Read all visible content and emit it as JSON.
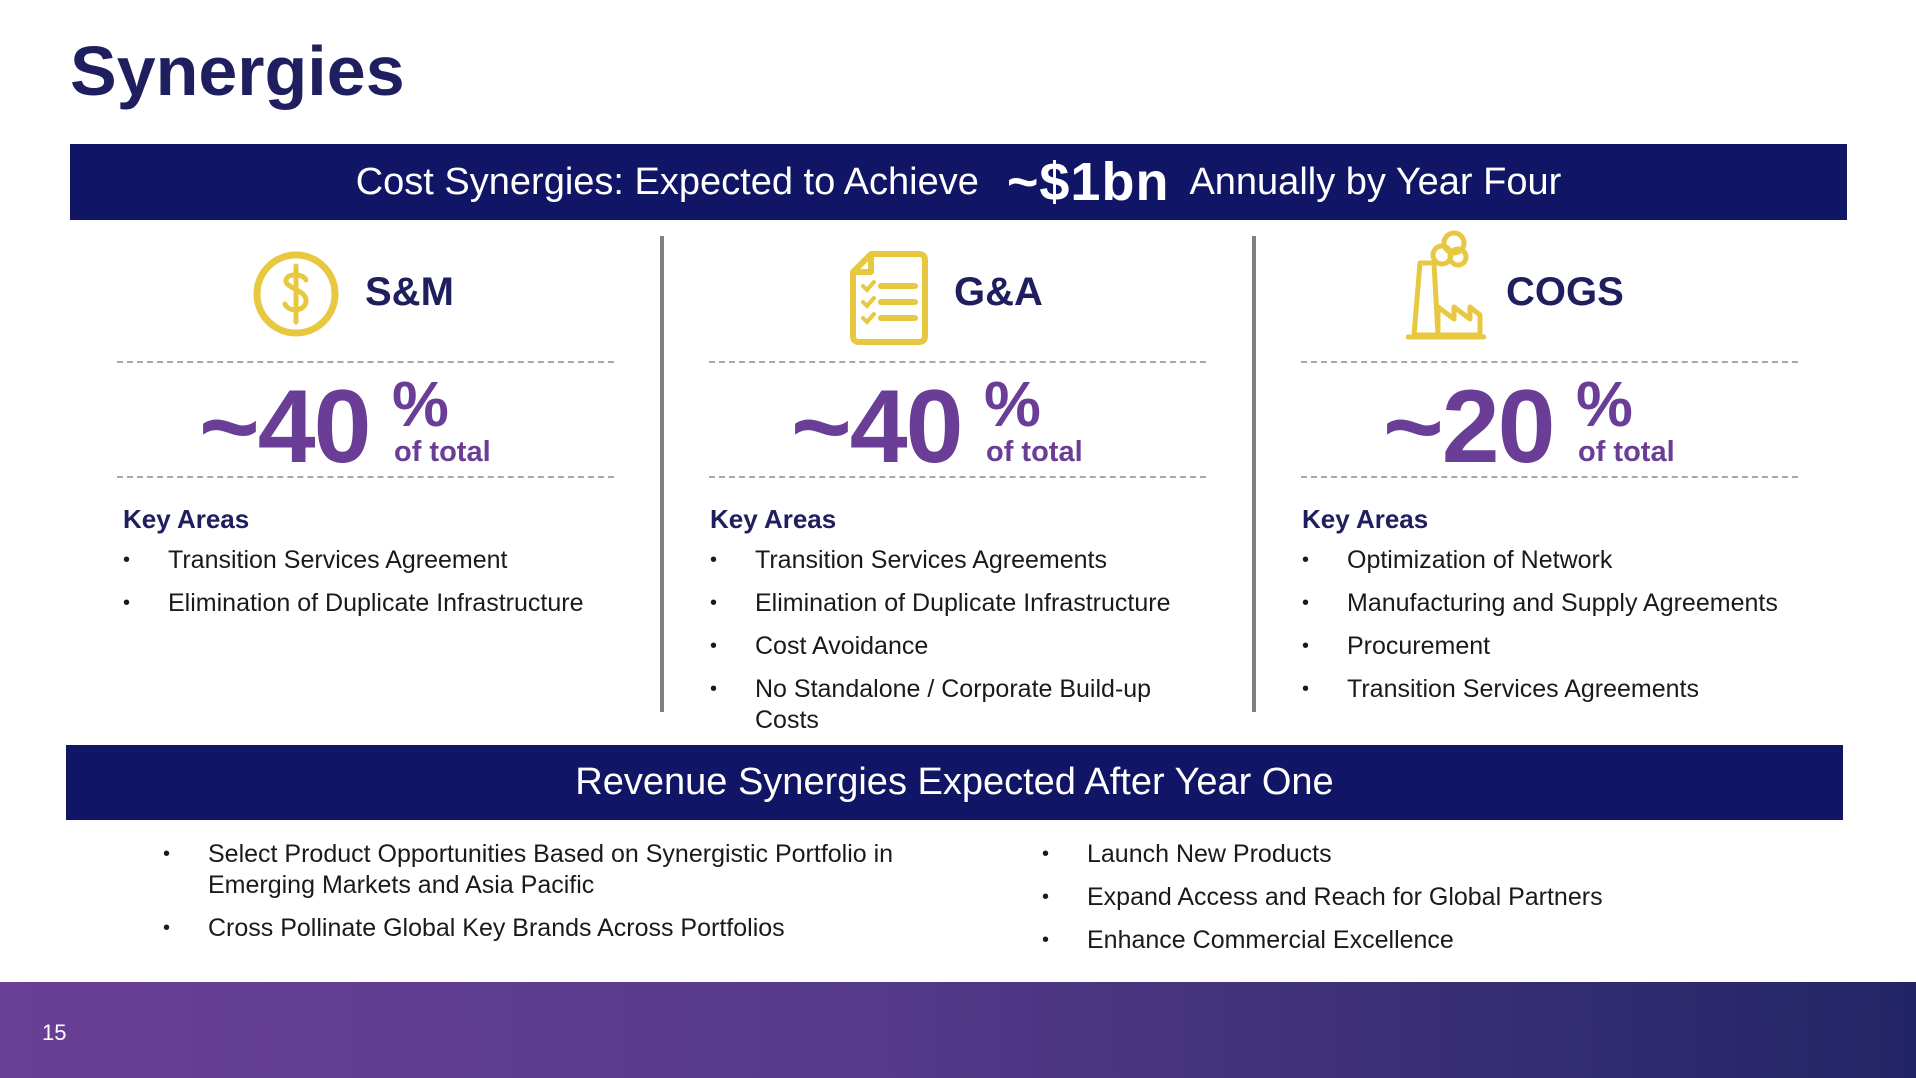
{
  "title": "Synergies",
  "cost_banner": {
    "prefix": "Cost Synergies: Expected to Achieve",
    "amount": "~$1bn",
    "suffix": "Annually by Year Four"
  },
  "columns": [
    {
      "label": "S&M",
      "icon": "dollar-coin-icon",
      "percent": "~40",
      "percent_sign": "%",
      "percent_sub": "of total",
      "key_areas_label": "Key Areas",
      "items": [
        "Transition Services Agreement",
        "Elimination of Duplicate Infrastructure"
      ]
    },
    {
      "label": "G&A",
      "icon": "checklist-clipboard-icon",
      "percent": "~40",
      "percent_sign": "%",
      "percent_sub": "of total",
      "key_areas_label": "Key Areas",
      "items": [
        "Transition Services Agreements",
        "Elimination of Duplicate Infrastructure",
        "Cost Avoidance",
        "No Standalone / Corporate Build-up Costs"
      ]
    },
    {
      "label": "COGS",
      "icon": "factory-icon",
      "percent": "~20",
      "percent_sign": "%",
      "percent_sub": "of total",
      "key_areas_label": "Key Areas",
      "items": [
        "Optimization of Network",
        "Manufacturing and Supply Agreements",
        "Procurement",
        "Transition Services Agreements"
      ]
    }
  ],
  "revenue_banner": "Revenue Synergies Expected After Year One",
  "revenue_left": [
    "Select Product Opportunities Based on Synergistic Portfolio in Emerging Markets and Asia Pacific",
    "Cross Pollinate Global Key Brands Across Portfolios"
  ],
  "revenue_right": [
    "Launch New Products",
    "Expand Access and Reach for Global Partners",
    "Enhance Commercial Excellence"
  ],
  "page_number": "15",
  "colors": {
    "title": "#1f1e5e",
    "banner": "#111566",
    "percent": "#6a3d96",
    "icon": "#e8c840",
    "footer_start": "#6a3f96",
    "footer_end": "#222565"
  }
}
